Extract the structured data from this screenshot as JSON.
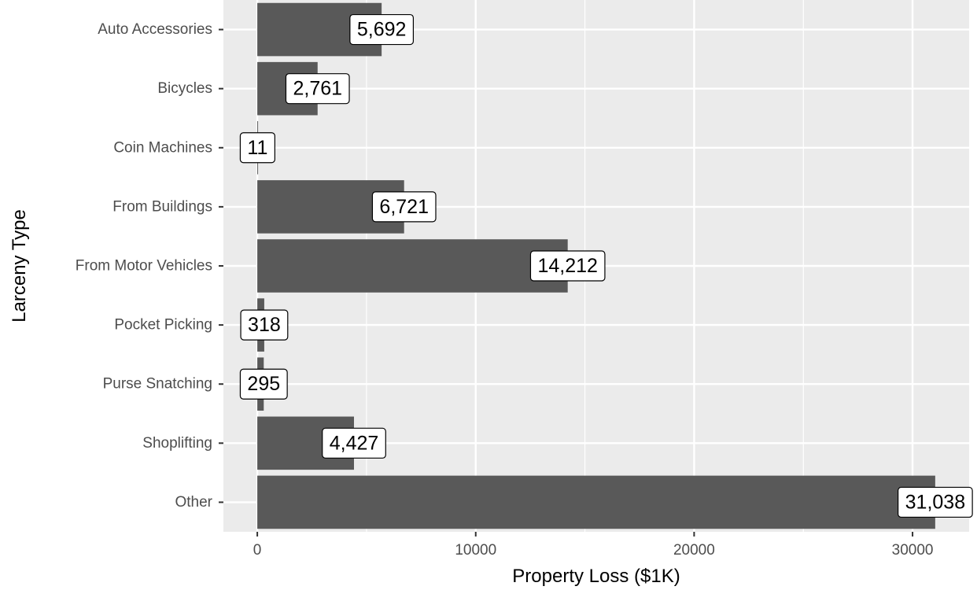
{
  "chart_data": {
    "type": "bar",
    "orientation": "horizontal",
    "categories": [
      "Auto Accessories",
      "Bicycles",
      "Coin Machines",
      "From Buildings",
      "From Motor Vehicles",
      "Pocket Picking",
      "Purse Snatching",
      "Shoplifting",
      "Other"
    ],
    "values": [
      5692,
      2761,
      11,
      6721,
      14212,
      318,
      295,
      4427,
      31038
    ],
    "data_labels": [
      "5,692",
      "2,761",
      "11",
      "6,721",
      "14,212",
      "318",
      "295",
      "4,427",
      "31,038"
    ],
    "xlabel": "Property Loss ($1K)",
    "ylabel": "Larceny Type",
    "x_ticks": [
      0,
      10000,
      20000,
      30000
    ],
    "x_tick_labels": [
      "0",
      "10000",
      "20000",
      "30000"
    ],
    "xlim": [
      -1552,
      32591
    ],
    "grid": true,
    "colors": {
      "panel_background": "#ebebeb",
      "grid_major": "#ffffff",
      "bar_fill": "#595959",
      "label_fill": "#ffffff",
      "label_border": "#000000",
      "tick_text": "#4d4d4d",
      "axis_title": "#000000"
    }
  }
}
